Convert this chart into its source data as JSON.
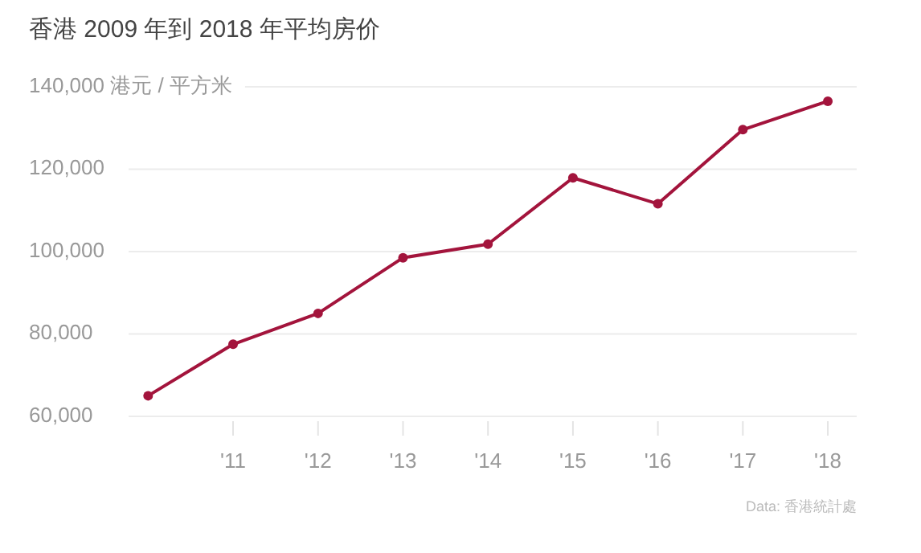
{
  "chart_data": {
    "type": "line",
    "title": "香港 2009 年到 2018 年平均房价",
    "x": [
      2010,
      2011,
      2012,
      2013,
      2014,
      2015,
      2016,
      2017,
      2018
    ],
    "series": [
      {
        "color": "#a3143c",
        "values": [
          65000,
          77500,
          85000,
          98500,
          101800,
          117900,
          111600,
          129600,
          136500
        ]
      }
    ],
    "xlim": [
      2009.77,
      2018.34
    ],
    "xticks": [
      {
        "value": 2011,
        "label": "'11"
      },
      {
        "value": 2012,
        "label": "'12"
      },
      {
        "value": 2013,
        "label": "'13"
      },
      {
        "value": 2014,
        "label": "'14"
      },
      {
        "value": 2015,
        "label": "'15"
      },
      {
        "value": 2016,
        "label": "'16"
      },
      {
        "value": 2017,
        "label": "'17"
      },
      {
        "value": 2018,
        "label": "'18"
      }
    ],
    "ylim": [
      60000,
      140000
    ],
    "yticks": [
      {
        "value": 60000,
        "label": "60,000"
      },
      {
        "value": 80000,
        "label": "80,000"
      },
      {
        "value": 100000,
        "label": "100,000"
      },
      {
        "value": 120000,
        "label": "120,000"
      },
      {
        "value": 140000,
        "label": "140,000 港元 / 平方米"
      }
    ],
    "grid": "y",
    "marker": "circle",
    "line_style": "solid",
    "annotations": [
      "Data: 香港統計處"
    ]
  }
}
